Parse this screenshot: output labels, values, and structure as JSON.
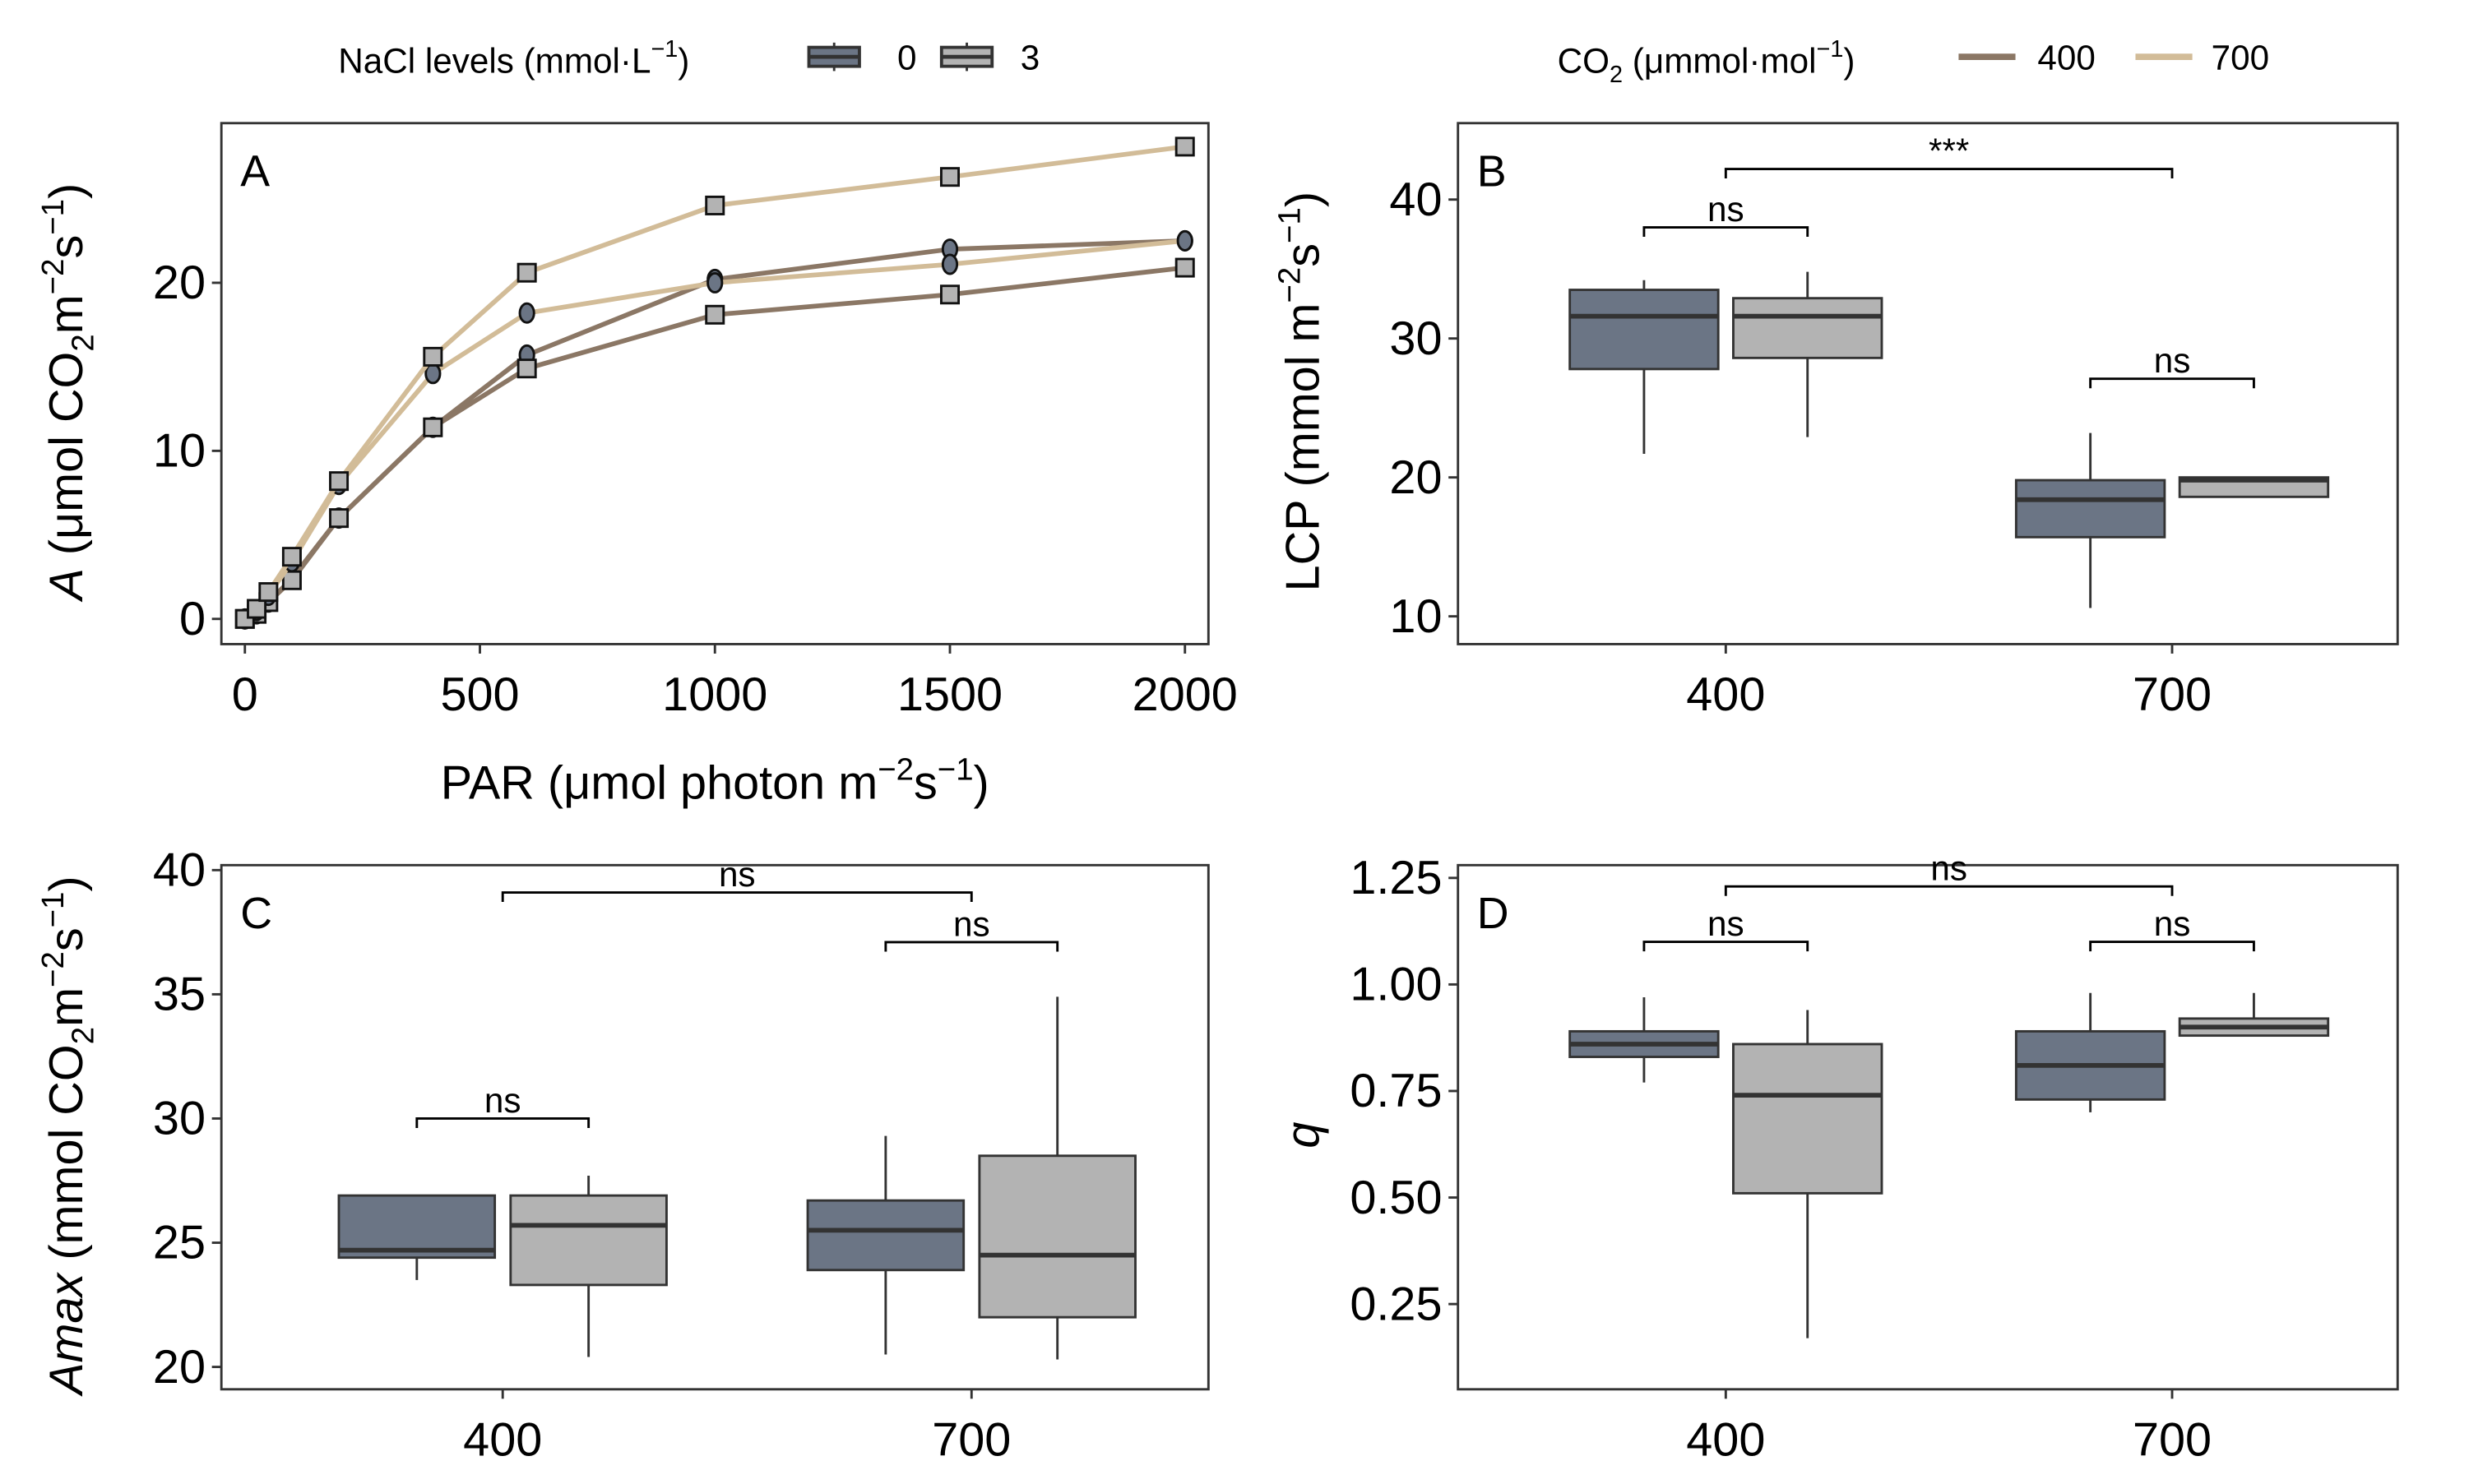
{
  "legend": {
    "nacl_title": "NaCl levels (mmol·L",
    "nacl_sup": "−1",
    "nacl_close": ")",
    "nacl_items": [
      {
        "label": "0",
        "color": "#6b7585"
      },
      {
        "label": "3",
        "color": "#b3b3b3"
      }
    ],
    "co2_title": "CO",
    "co2_sub": "2",
    "co2_rest": " (μmmol·mol",
    "co2_sup": "−1",
    "co2_close": ")",
    "co2_items": [
      {
        "label": "400",
        "color": "#8b7765"
      },
      {
        "label": "700",
        "color": "#d2bc98"
      }
    ]
  },
  "chart_data": [
    {
      "panel": "A",
      "type": "line",
      "xlabel": "PAR (μmol photon m−2s−1)",
      "xlabel_parts": [
        "PAR (μmol photon m",
        "−2",
        "s",
        "−1",
        ")"
      ],
      "ylabel_parts": [
        "A",
        " (μmol CO",
        "2",
        "m",
        "−2",
        "s",
        "−1",
        ")"
      ],
      "xlim": [
        -50,
        2050
      ],
      "ylim": [
        -1.5,
        29.5
      ],
      "xticks": [
        0,
        500,
        1000,
        1500,
        2000
      ],
      "yticks": [
        0,
        10,
        20
      ],
      "x": [
        0,
        25,
        50,
        100,
        200,
        400,
        600,
        1000,
        1500,
        2000
      ],
      "series": [
        {
          "name": "CO2 400, NaCl 0",
          "co2": "400",
          "nacl": "0",
          "values": [
            0,
            0.3,
            1.0,
            2.4,
            6.0,
            11.4,
            15.7,
            20.2,
            22.0,
            22.5
          ]
        },
        {
          "name": "CO2 400, NaCl 3",
          "co2": "400",
          "nacl": "3",
          "values": [
            0,
            0.3,
            1.0,
            2.3,
            6.0,
            11.4,
            14.9,
            18.1,
            19.3,
            20.9
          ]
        },
        {
          "name": "CO2 700, NaCl 0",
          "co2": "700",
          "nacl": "0",
          "values": [
            0,
            0.5,
            1.4,
            3.4,
            8.0,
            14.6,
            18.2,
            20.0,
            21.1,
            22.5
          ]
        },
        {
          "name": "CO2 700, NaCl 3",
          "co2": "700",
          "nacl": "3",
          "values": [
            0,
            0.6,
            1.6,
            3.7,
            8.2,
            15.6,
            20.6,
            24.6,
            26.3,
            28.1
          ]
        }
      ]
    },
    {
      "panel": "B",
      "type": "box",
      "ylabel_parts": [
        "LCP (mmol m",
        "−2",
        "s",
        "−1",
        ")"
      ],
      "ylim": [
        8,
        45.5
      ],
      "yticks": [
        10,
        20,
        30,
        40
      ],
      "categories": [
        "400",
        "700"
      ],
      "boxes": [
        {
          "co2": "400",
          "nacl": "0",
          "min": 21.7,
          "q1": 27.8,
          "median": 31.6,
          "q3": 33.5,
          "max": 34.2
        },
        {
          "co2": "400",
          "nacl": "3",
          "min": 22.9,
          "q1": 28.6,
          "median": 31.6,
          "q3": 32.9,
          "max": 34.8
        },
        {
          "co2": "700",
          "nacl": "0",
          "min": 10.6,
          "q1": 15.7,
          "median": 18.4,
          "q3": 19.8,
          "max": 23.2
        },
        {
          "co2": "700",
          "nacl": "3",
          "min": 18.6,
          "q1": 18.6,
          "median": 19.8,
          "q3": 20.0,
          "max": 20.0
        }
      ],
      "annotations": [
        {
          "label": "***",
          "from": "400",
          "to": "700",
          "y": 42.2,
          "kind": "between"
        },
        {
          "label": "ns",
          "group": "400",
          "y": 38.0,
          "kind": "within"
        },
        {
          "label": "ns",
          "group": "700",
          "y": 27.1,
          "kind": "within"
        }
      ]
    },
    {
      "panel": "C",
      "type": "box",
      "ylabel_parts": [
        "Amax",
        " (mmol CO",
        "2",
        "m",
        "−2",
        "s",
        "−1",
        ")"
      ],
      "ylim": [
        19.1,
        40.2
      ],
      "yticks": [
        20,
        25,
        30,
        35,
        40
      ],
      "categories": [
        "400",
        "700"
      ],
      "boxes": [
        {
          "co2": "400",
          "nacl": "0",
          "min": 23.5,
          "q1": 24.4,
          "median": 24.7,
          "q3": 26.9,
          "max": 26.9
        },
        {
          "co2": "400",
          "nacl": "3",
          "min": 20.4,
          "q1": 23.3,
          "median": 25.7,
          "q3": 26.9,
          "max": 27.7
        },
        {
          "co2": "700",
          "nacl": "0",
          "min": 20.5,
          "q1": 23.9,
          "median": 25.5,
          "q3": 26.7,
          "max": 29.3
        },
        {
          "co2": "700",
          "nacl": "3",
          "min": 20.3,
          "q1": 22.0,
          "median": 24.5,
          "q3": 28.5,
          "max": 34.9
        }
      ],
      "annotations": [
        {
          "label": "ns",
          "from": "400",
          "to": "700",
          "y": 39.1,
          "kind": "between"
        },
        {
          "label": "ns",
          "group": "700",
          "y": 37.1,
          "kind": "within"
        },
        {
          "label": "ns",
          "group": "400",
          "y": 30.0,
          "kind": "within"
        }
      ]
    },
    {
      "panel": "D",
      "type": "box",
      "ylabel_parts": [
        "q"
      ],
      "ylim": [
        0.05,
        1.28
      ],
      "yticks": [
        0.25,
        0.5,
        0.75,
        1.0,
        1.25
      ],
      "ytick_labels": [
        "0.25",
        "0.50",
        "0.75",
        "1.00",
        "1.25"
      ],
      "categories": [
        "400",
        "700"
      ],
      "boxes": [
        {
          "co2": "400",
          "nacl": "0",
          "min": 0.77,
          "q1": 0.83,
          "median": 0.86,
          "q3": 0.89,
          "max": 0.97
        },
        {
          "co2": "400",
          "nacl": "3",
          "min": 0.17,
          "q1": 0.51,
          "median": 0.74,
          "q3": 0.86,
          "max": 0.94
        },
        {
          "co2": "700",
          "nacl": "0",
          "min": 0.7,
          "q1": 0.73,
          "median": 0.81,
          "q3": 0.89,
          "max": 0.98
        },
        {
          "co2": "700",
          "nacl": "3",
          "min": 0.88,
          "q1": 0.88,
          "median": 0.9,
          "q3": 0.92,
          "max": 0.98
        }
      ],
      "annotations": [
        {
          "label": "ns",
          "from": "400",
          "to": "700",
          "y": 1.23,
          "kind": "between"
        },
        {
          "label": "ns",
          "group": "400",
          "y": 1.1,
          "kind": "within"
        },
        {
          "label": "ns",
          "group": "700",
          "y": 1.1,
          "kind": "within"
        }
      ]
    }
  ]
}
